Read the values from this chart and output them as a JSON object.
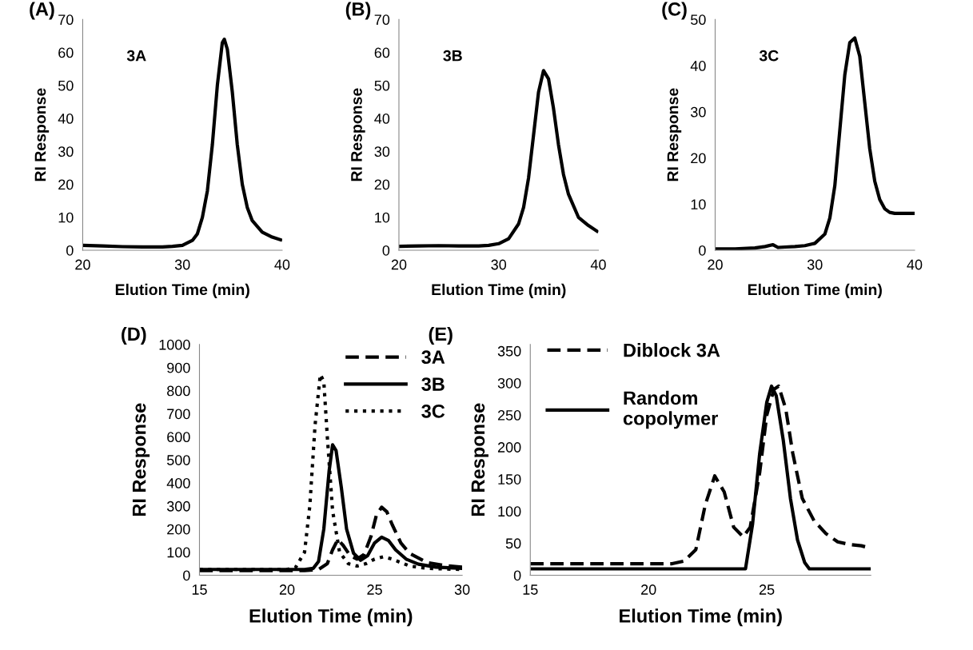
{
  "chart_data": [
    {
      "type": "line",
      "annotations": [
        "(A)",
        "3A"
      ],
      "xlabel": "Elution Time (min)",
      "ylabel": "RI Response",
      "xlim": [
        20,
        40
      ],
      "xticks": [
        20,
        30,
        40
      ],
      "ylim": [
        0,
        70
      ],
      "yticks": [
        0,
        10,
        20,
        30,
        40,
        50,
        60,
        70
      ],
      "grid": false,
      "legend": false,
      "line_style": "solid",
      "marker": "none",
      "series": [
        {
          "color": "#000000",
          "x": [
            20,
            22,
            24,
            26,
            28,
            29,
            30,
            31,
            31.5,
            32,
            32.5,
            33,
            33.5,
            34,
            34.2,
            34.5,
            35,
            35.5,
            36,
            36.5,
            37,
            38,
            39,
            40
          ],
          "values": [
            1.5,
            1.3,
            1.1,
            1,
            1,
            1.2,
            1.5,
            3,
            5,
            10,
            18,
            32,
            50,
            63,
            64,
            61,
            48,
            32,
            20,
            13,
            9,
            5.5,
            4,
            3
          ]
        }
      ]
    },
    {
      "type": "line",
      "annotations": [
        "(B)",
        "3B"
      ],
      "xlabel": "Elution Time (min)",
      "ylabel": "RI Response",
      "xlim": [
        20,
        40
      ],
      "xticks": [
        20,
        30,
        40
      ],
      "ylim": [
        0,
        70
      ],
      "yticks": [
        0,
        10,
        20,
        30,
        40,
        50,
        60,
        70
      ],
      "grid": false,
      "legend": false,
      "line_style": "solid",
      "marker": "none",
      "series": [
        {
          "color": "#000000",
          "x": [
            20,
            22,
            24,
            26,
            28,
            29,
            30,
            31,
            32,
            32.5,
            33,
            33.5,
            34,
            34.5,
            35,
            35.5,
            36,
            36.5,
            37,
            38,
            39,
            40
          ],
          "values": [
            1.2,
            1.3,
            1.4,
            1.3,
            1.3,
            1.5,
            2,
            3.5,
            8,
            13,
            22,
            35,
            48,
            54.5,
            52,
            43,
            32,
            23,
            17,
            10,
            7.5,
            5.5
          ]
        }
      ]
    },
    {
      "type": "line",
      "annotations": [
        "(C)",
        "3C"
      ],
      "xlabel": "Elution Time (min)",
      "ylabel": "RI Response",
      "xlim": [
        20,
        40
      ],
      "xticks": [
        20,
        30,
        40
      ],
      "ylim": [
        0,
        50
      ],
      "yticks": [
        0,
        10,
        20,
        30,
        40,
        50
      ],
      "grid": false,
      "legend": false,
      "line_style": "solid",
      "marker": "none",
      "series": [
        {
          "color": "#000000",
          "x": [
            20,
            22,
            24,
            25,
            25.8,
            26.3,
            27,
            28,
            29,
            30,
            31,
            31.5,
            32,
            32.5,
            33,
            33.5,
            34,
            34.5,
            35,
            35.5,
            36,
            36.5,
            37,
            37.5,
            38,
            39,
            40
          ],
          "values": [
            0.3,
            0.3,
            0.5,
            0.8,
            1.2,
            0.6,
            0.7,
            0.8,
            1,
            1.5,
            3.5,
            7,
            14,
            26,
            38,
            45,
            46,
            42,
            32,
            22,
            15,
            11,
            9,
            8.2,
            8,
            8,
            8
          ]
        }
      ]
    },
    {
      "type": "line",
      "annotations": [
        "(D)"
      ],
      "xlabel": "Elution Time (min)",
      "ylabel": "RI Response",
      "xlim": [
        15,
        30
      ],
      "xticks": [
        15,
        20,
        25,
        30
      ],
      "ylim": [
        0,
        1000
      ],
      "yticks": [
        0,
        100,
        200,
        300,
        400,
        500,
        600,
        700,
        800,
        900,
        1000
      ],
      "grid": false,
      "legend": "top right",
      "marker": "none",
      "series": [
        {
          "name": "3A",
          "color": "#000000",
          "line_style": "dashed",
          "x": [
            15,
            18,
            21,
            21.8,
            22.3,
            22.6,
            22.9,
            23.2,
            23.6,
            24,
            24.4,
            24.8,
            25.1,
            25.4,
            25.7,
            26,
            26.5,
            27,
            28,
            29,
            30
          ],
          "values": [
            20,
            20,
            20,
            25,
            50,
            110,
            155,
            130,
            85,
            70,
            90,
            170,
            260,
            295,
            275,
            220,
            140,
            95,
            55,
            42,
            35
          ]
        },
        {
          "name": "3B",
          "color": "#000000",
          "line_style": "solid",
          "x": [
            15,
            18,
            21,
            21.5,
            21.8,
            22.1,
            22.4,
            22.6,
            22.8,
            23.1,
            23.4,
            23.8,
            24.2,
            24.6,
            25,
            25.4,
            25.8,
            26.2,
            26.8,
            27.5,
            28.5,
            30
          ],
          "values": [
            25,
            25,
            25,
            30,
            60,
            200,
            450,
            565,
            540,
            380,
            200,
            95,
            65,
            85,
            140,
            165,
            150,
            110,
            70,
            48,
            35,
            30
          ]
        },
        {
          "name": "3C",
          "color": "#000000",
          "line_style": "dotted",
          "x": [
            15,
            18,
            20,
            20.5,
            21,
            21.3,
            21.6,
            21.9,
            22.1,
            22.3,
            22.6,
            23,
            23.5,
            24,
            24.5,
            25,
            25.5,
            26,
            26.5,
            27,
            28,
            30
          ],
          "values": [
            25,
            25,
            25,
            35,
            100,
            300,
            650,
            870,
            840,
            600,
            280,
            100,
            50,
            40,
            50,
            70,
            80,
            70,
            55,
            40,
            30,
            25
          ]
        }
      ]
    },
    {
      "type": "line",
      "annotations": [
        "(E)"
      ],
      "xlabel": "Elution Time (min)",
      "ylabel": "RI Response",
      "xlim": [
        15,
        29.4
      ],
      "xticks": [
        15,
        20,
        25
      ],
      "ylim": [
        0,
        360
      ],
      "yticks": [
        0,
        50,
        100,
        150,
        200,
        250,
        300,
        350
      ],
      "grid": false,
      "legend": "top left",
      "marker": "none",
      "series": [
        {
          "name": "Diblock 3A",
          "color": "#000000",
          "line_style": "dashed",
          "x": [
            15,
            18,
            21,
            21.5,
            22,
            22.4,
            22.8,
            23.2,
            23.6,
            24,
            24.3,
            24.7,
            25,
            25.3,
            25.5,
            25.8,
            26.1,
            26.5,
            27,
            27.5,
            28,
            28.5,
            29,
            29.4
          ],
          "values": [
            18,
            18,
            18,
            22,
            40,
            110,
            155,
            130,
            75,
            60,
            75,
            160,
            250,
            290,
            295,
            260,
            190,
            120,
            85,
            65,
            52,
            48,
            46,
            42
          ]
        },
        {
          "name": "Random\ncopolymer",
          "color": "#000000",
          "line_style": "solid",
          "x": [
            15,
            24.1,
            24.4,
            24.7,
            25,
            25.2,
            25.4,
            25.7,
            26,
            26.3,
            26.6,
            26.8,
            29.4
          ],
          "values": [
            10,
            10,
            80,
            190,
            270,
            295,
            280,
            210,
            120,
            55,
            20,
            10,
            10
          ]
        }
      ]
    }
  ]
}
